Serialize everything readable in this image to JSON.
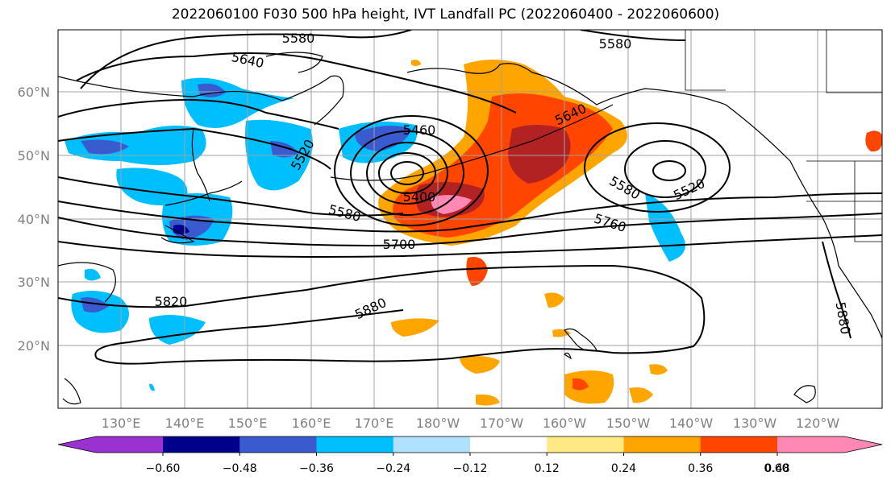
{
  "title": "2022060100 F030 500 hPa height, IVT Landfall PC (2022060400 - 2022060600)",
  "lat_labels": [
    "60°N",
    "50°N",
    "40°N",
    "30°N",
    "20°N"
  ],
  "lon_labels": [
    "130°E",
    "140°E",
    "150°E",
    "160°E",
    "170°E",
    "180°W",
    "170°W",
    "160°W",
    "150°W",
    "140°W",
    "130°W",
    "120°W"
  ],
  "contour_labels": [
    "5580",
    "5580",
    "5640",
    "5520",
    "5460",
    "5400",
    "5640",
    "5580",
    "5520",
    "5580",
    "5760",
    "5700",
    "5820",
    "5880",
    "5880"
  ],
  "colorbar": {
    "colors": [
      "#9a31d0",
      "#00008b",
      "#3a5bd0",
      "#00bfff",
      "#b0e2ff",
      "#ffffff",
      "#ffe985",
      "#ffa500",
      "#ff4500",
      "#b22222",
      "#ff88b4"
    ],
    "tick_labels": [
      "−0.60",
      "−0.48",
      "−0.36",
      "−0.24",
      "−0.12",
      "0.12",
      "0.24",
      "0.36",
      "0.48",
      "0.60"
    ]
  }
}
